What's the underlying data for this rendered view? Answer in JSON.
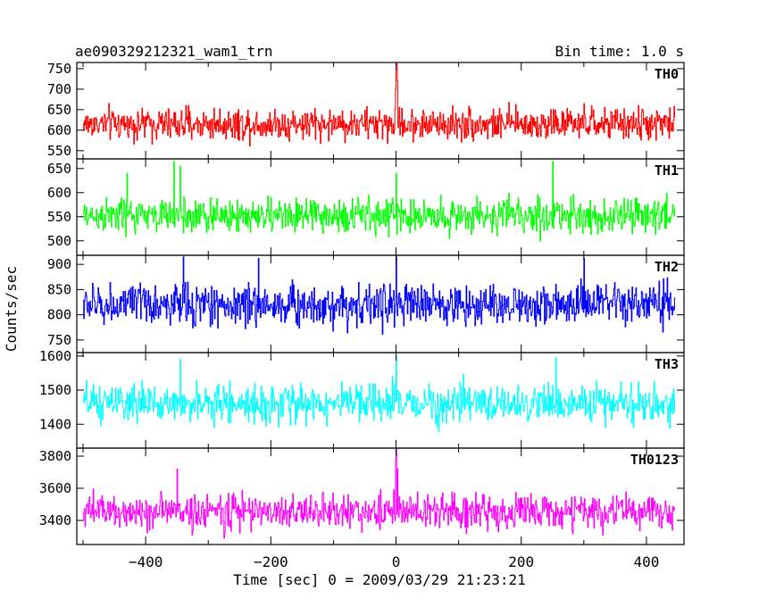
{
  "header": {
    "title": "ae090329212321_wam1_trn",
    "bin_time": "Bin time: 1.0 s"
  },
  "axes": {
    "ylabel": "Counts/sec",
    "xlabel": "Time [sec] 0 = 2009/03/29 21:23:21"
  },
  "chart_data": {
    "type": "line",
    "xlim": [
      -510,
      460
    ],
    "xticks": [
      -400,
      -200,
      0,
      200,
      400
    ],
    "xtick_labels": [
      "−400",
      "−200",
      "0",
      "200",
      "400"
    ],
    "data_range": [
      -500,
      445
    ],
    "panels": [
      {
        "name": "TH0",
        "color": "#ff0000",
        "ylim": [
          530,
          765
        ],
        "yticks": [
          550,
          600,
          650,
          700,
          750
        ],
        "mean": 615,
        "noise": 30,
        "spikes": [
          [
            0,
            765
          ],
          [
            1,
            760
          ],
          [
            -1,
            700
          ],
          [
            2,
            720
          ]
        ]
      },
      {
        "name": "TH1",
        "color": "#00ff00",
        "ylim": [
          470,
          670
        ],
        "yticks": [
          500,
          550,
          600,
          650
        ],
        "mean": 552,
        "noise": 28,
        "spikes": [
          [
            -355,
            665
          ],
          [
            -345,
            655
          ],
          [
            0,
            640
          ],
          [
            250,
            665
          ],
          [
            -430,
            640
          ]
        ]
      },
      {
        "name": "TH2",
        "color": "#0000ff",
        "ylim": [
          725,
          918
        ],
        "yticks": [
          750,
          800,
          850,
          900
        ],
        "mean": 820,
        "noise": 32,
        "spikes": [
          [
            -340,
            915
          ],
          [
            -220,
            912
          ],
          [
            0,
            915
          ],
          [
            300,
            912
          ]
        ]
      },
      {
        "name": "TH3",
        "color": "#00ffff",
        "ylim": [
          1330,
          1610
        ],
        "yticks": [
          1400,
          1500,
          1600
        ],
        "mean": 1460,
        "noise": 42,
        "spikes": [
          [
            -345,
            1590
          ],
          [
            0,
            1600
          ],
          [
            255,
            1595
          ]
        ]
      },
      {
        "name": "TH0123",
        "color": "#ff00ff",
        "ylim": [
          3250,
          3850
        ],
        "yticks": [
          3400,
          3600,
          3800
        ],
        "mean": 3455,
        "noise": 85,
        "spikes": [
          [
            0,
            3850
          ],
          [
            -1,
            3780
          ],
          [
            2,
            3720
          ],
          [
            -350,
            3720
          ]
        ]
      }
    ]
  }
}
